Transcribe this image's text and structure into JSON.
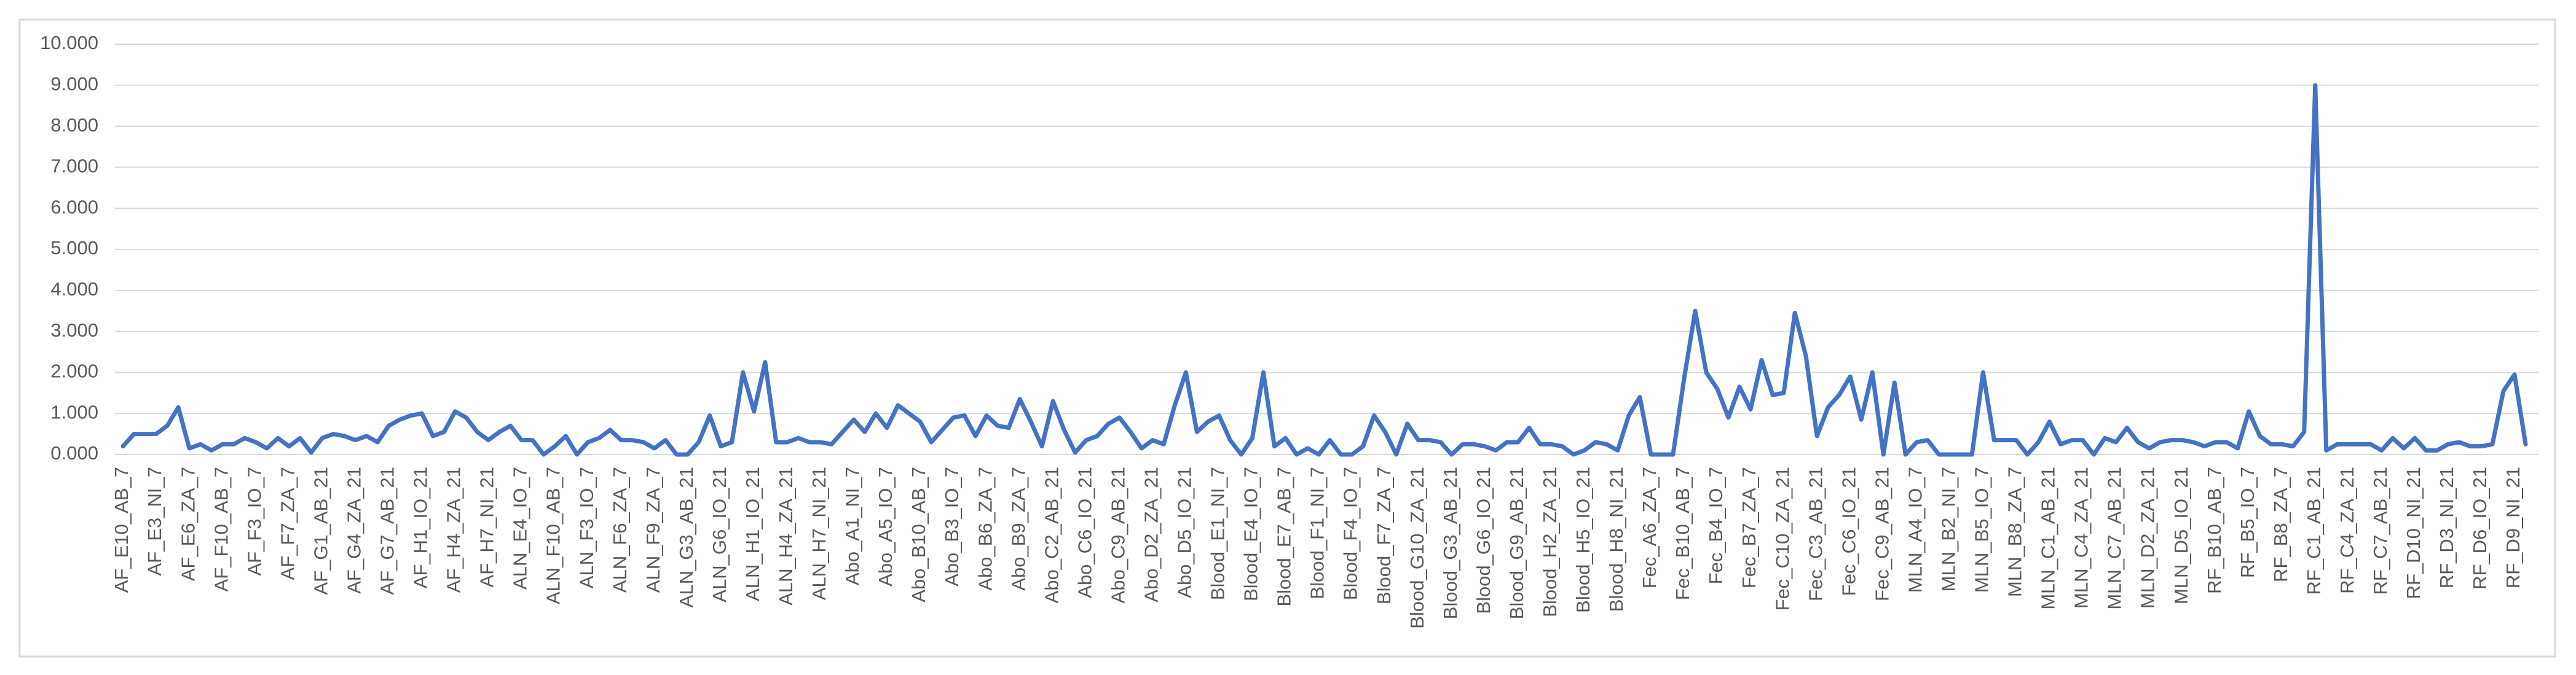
{
  "chart_data": {
    "type": "line",
    "categories": [
      "AF_E10_AB_7",
      null,
      null,
      "AF_E3_NI_7",
      null,
      null,
      "AF_E6_ZA_7",
      null,
      null,
      "AF_F10_AB_7",
      null,
      null,
      "AF_F3_IO_7",
      null,
      null,
      "AF_F7_ZA_7",
      null,
      null,
      "AF_G1_AB_21",
      null,
      null,
      "AF_G4_ZA_21",
      null,
      null,
      "AF_G7_AB_21",
      null,
      null,
      "AF_H1_IO_21",
      null,
      null,
      "AF_H4_ZA_21",
      null,
      null,
      "AF_H7_NI_21",
      null,
      null,
      "ALN_E4_IO_7",
      null,
      null,
      "ALN_F10_AB_7",
      null,
      null,
      "ALN_F3_IO_7",
      null,
      null,
      "ALN_F6_ZA_7",
      null,
      null,
      "ALN_F9_ZA_7",
      null,
      null,
      "ALN_G3_AB_21",
      null,
      null,
      "ALN_G6_IO_21",
      null,
      null,
      "ALN_H1_IO_21",
      null,
      null,
      "ALN_H4_ZA_21",
      null,
      null,
      "ALN_H7_NI_21",
      null,
      null,
      "Abo_A1_NI_7",
      null,
      null,
      "Abo_A5_IO_7",
      null,
      null,
      "Abo_B10_AB_7",
      null,
      null,
      "Abo_B3_IO_7",
      null,
      null,
      "Abo_B6_ZA_7",
      null,
      null,
      "Abo_B9_ZA_7",
      null,
      null,
      "Abo_C2_AB_21",
      null,
      null,
      "Abo_C6_IO_21",
      null,
      null,
      "Abo_C9_AB_21",
      null,
      null,
      "Abo_D2_ZA_21",
      null,
      null,
      "Abo_D5_IO_21",
      null,
      null,
      "Blood_E1_NI_7",
      null,
      null,
      "Blood_E4_IO_7",
      null,
      null,
      "Blood_E7_AB_7",
      null,
      null,
      "Blood_F1_NI_7",
      null,
      null,
      "Blood_F4_IO_7",
      null,
      null,
      "Blood_F7_ZA_7",
      null,
      null,
      "Blood_G10_ZA_21",
      null,
      null,
      "Blood_G3_AB_21",
      null,
      null,
      "Blood_G6_IO_21",
      null,
      null,
      "Blood_G9_AB_21",
      null,
      null,
      "Blood_H2_ZA_21",
      null,
      null,
      "Blood_H5_IO_21",
      null,
      null,
      "Blood_H8_NI_21",
      null,
      null,
      "Fec_A6_ZA_7",
      null,
      null,
      "Fec_B10_AB_7",
      null,
      null,
      "Fec_B4_IO_7",
      null,
      null,
      "Fec_B7_ZA_7",
      null,
      null,
      "Fec_C10_ZA_21",
      null,
      null,
      "Fec_C3_AB_21",
      null,
      null,
      "Fec_C6_IO_21",
      null,
      null,
      "Fec_C9_AB_21",
      null,
      null,
      "MLN_A4_IO_7",
      null,
      null,
      "MLN_B2_NI_7",
      null,
      null,
      "MLN_B5_IO_7",
      null,
      null,
      "MLN_B8_ZA_7",
      null,
      null,
      "MLN_C1_AB_21",
      null,
      null,
      "MLN_C4_ZA_21",
      null,
      null,
      "MLN_C7_AB_21",
      null,
      null,
      "MLN_D2_ZA_21",
      null,
      null,
      "MLN_D5_IO_21",
      null,
      null,
      "RF_B10_AB_7",
      null,
      null,
      "RF_B5_IO_7",
      null,
      null,
      "RF_B8_ZA_7",
      null,
      null,
      "RF_C1_AB_21",
      null,
      null,
      "RF_C4_ZA_21",
      null,
      null,
      "RF_C7_AB_21",
      null,
      null,
      "RF_D10_NI_21",
      null,
      null,
      "RF_D3_NI_21",
      null,
      null,
      "RF_D6_IO_21",
      null,
      null,
      "RF_D9_NI_21",
      null
    ],
    "values": [
      0.2,
      0.5,
      0.5,
      0.5,
      0.7,
      1.15,
      0.15,
      0.25,
      0.1,
      0.25,
      0.25,
      0.4,
      0.3,
      0.15,
      0.4,
      0.2,
      0.4,
      0.05,
      0.4,
      0.5,
      0.45,
      0.35,
      0.45,
      0.3,
      0.7,
      0.85,
      0.95,
      1.0,
      0.45,
      0.55,
      1.05,
      0.9,
      0.55,
      0.35,
      0.55,
      0.7,
      0.35,
      0.35,
      0.0,
      0.2,
      0.45,
      0.0,
      0.3,
      0.4,
      0.6,
      0.35,
      0.35,
      0.3,
      0.15,
      0.35,
      0.0,
      0.0,
      0.3,
      0.95,
      0.2,
      0.3,
      2.0,
      1.05,
      2.25,
      0.3,
      0.3,
      0.4,
      0.3,
      0.3,
      0.25,
      0.55,
      0.85,
      0.55,
      1.0,
      0.65,
      1.2,
      1.0,
      0.8,
      0.3,
      0.6,
      0.9,
      0.95,
      0.45,
      0.95,
      0.7,
      0.65,
      1.35,
      0.8,
      0.2,
      1.3,
      0.6,
      0.05,
      0.35,
      0.45,
      0.75,
      0.9,
      0.55,
      0.15,
      0.35,
      0.25,
      1.2,
      2.0,
      0.55,
      0.8,
      0.95,
      0.35,
      0.0,
      0.4,
      2.0,
      0.2,
      0.4,
      0.0,
      0.15,
      0.0,
      0.35,
      0.0,
      0.0,
      0.2,
      0.95,
      0.55,
      0.0,
      0.75,
      0.35,
      0.35,
      0.3,
      0.0,
      0.25,
      0.25,
      0.2,
      0.1,
      0.3,
      0.3,
      0.65,
      0.25,
      0.25,
      0.2,
      0.0,
      0.1,
      0.3,
      0.25,
      0.1,
      0.95,
      1.4,
      0.0,
      0.0,
      0.0,
      1.85,
      3.5,
      2.0,
      1.6,
      0.9,
      1.65,
      1.1,
      2.3,
      1.45,
      1.5,
      3.45,
      2.4,
      0.45,
      1.15,
      1.45,
      1.9,
      0.85,
      2.0,
      0.0,
      1.75,
      0.0,
      0.3,
      0.35,
      0.0,
      0.0,
      0.0,
      0.0,
      2.0,
      0.35,
      0.35,
      0.35,
      0.0,
      0.3,
      0.8,
      0.25,
      0.35,
      0.35,
      0.0,
      0.4,
      0.3,
      0.65,
      0.3,
      0.15,
      0.3,
      0.35,
      0.35,
      0.3,
      0.2,
      0.3,
      0.3,
      0.15,
      1.05,
      0.45,
      0.25,
      0.25,
      0.2,
      0.55,
      9.0,
      0.1,
      0.25,
      0.25,
      0.25,
      0.25,
      0.1,
      0.4,
      0.15,
      0.4,
      0.1,
      0.1,
      0.25,
      0.3,
      0.2,
      0.2,
      0.25,
      1.55,
      1.95,
      0.25
    ],
    "color": "#4472c4",
    "ylim": [
      0,
      10
    ],
    "yticks": [
      {
        "value": 0,
        "label": "0.000"
      },
      {
        "value": 1,
        "label": "1.000"
      },
      {
        "value": 2,
        "label": "2.000"
      },
      {
        "value": 3,
        "label": "3.000"
      },
      {
        "value": 4,
        "label": "4.000"
      },
      {
        "value": 5,
        "label": "5.000"
      },
      {
        "value": 6,
        "label": "6.000"
      },
      {
        "value": 7,
        "label": "7.000"
      },
      {
        "value": 8,
        "label": "8.000"
      },
      {
        "value": 9,
        "label": "9.000"
      },
      {
        "value": 10,
        "label": "10.000"
      }
    ],
    "grid": true
  }
}
